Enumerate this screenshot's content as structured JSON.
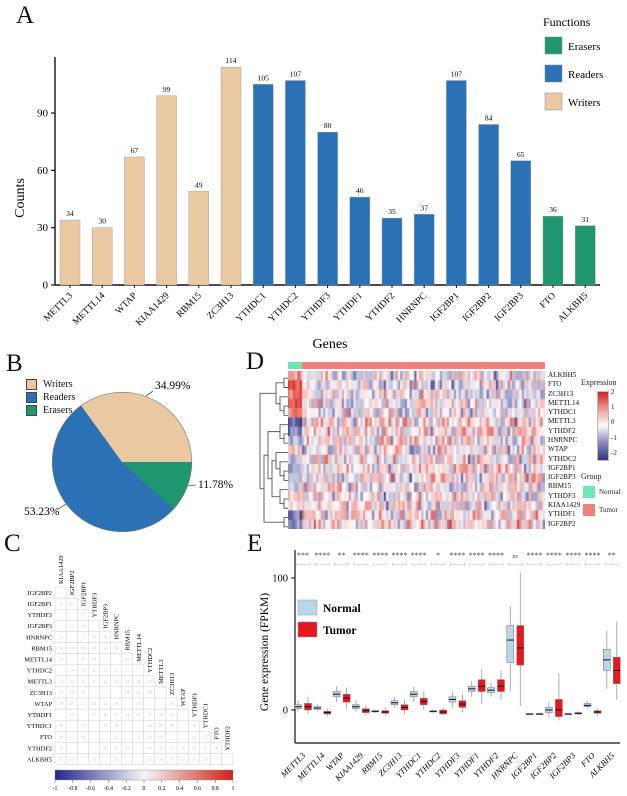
{
  "panel_letters": {
    "a": "A",
    "b": "B",
    "c": "C",
    "d": "D",
    "e": "E"
  },
  "colors": {
    "writers": "#EAC8A2",
    "readers": "#2A72B5",
    "erasers": "#1E9771",
    "normal_box": "#B8D6E6",
    "tumor_box": "#E8161D",
    "group_normal": "#70E6B4",
    "group_tumor": "#F0827B",
    "heat_pos": "#DE3228",
    "heat_neg": "#39398C",
    "corr_neg": "#24248C",
    "corr_pos": "#CC2418"
  },
  "chart_data": [
    {
      "id": "A",
      "type": "bar",
      "xlabel": "Genes",
      "ylabel": "Counts",
      "yticks": [
        0,
        30,
        60,
        90
      ],
      "categories": [
        "METTL3",
        "METTL14",
        "WTAP",
        "KIAA1429",
        "RBM15",
        "ZC3H13",
        "YTHDC1",
        "YTHDC2",
        "YTHDF3",
        "YTHDF1",
        "YTHDF2",
        "HNRNPC",
        "IGF2BP1",
        "IGF2BP2",
        "IGF2BP3",
        "FTO",
        "ALKBH5"
      ],
      "values": [
        34,
        30,
        67,
        99,
        49,
        114,
        105,
        107,
        80,
        46,
        35,
        37,
        107,
        84,
        65,
        36,
        31
      ],
      "groups": [
        "Writers",
        "Writers",
        "Writers",
        "Writers",
        "Writers",
        "Writers",
        "Readers",
        "Readers",
        "Readers",
        "Readers",
        "Readers",
        "Readers",
        "Readers",
        "Readers",
        "Readers",
        "Erasers",
        "Erasers"
      ],
      "legend": {
        "title": "Functions",
        "items": [
          {
            "label": "Erasers",
            "color": "#1E9771"
          },
          {
            "label": "Readers",
            "color": "#2A72B5"
          },
          {
            "label": "Writers",
            "color": "#EAC8A2"
          }
        ]
      }
    },
    {
      "id": "B",
      "type": "pie",
      "slices": [
        {
          "label": "Writers",
          "pct": 34.99,
          "text": "34.99%",
          "color": "#EAC8A2"
        },
        {
          "label": "Readers",
          "pct": 53.23,
          "text": "53.23%",
          "color": "#2A72B5"
        },
        {
          "label": "Erasers",
          "pct": 11.78,
          "text": "11.78%",
          "color": "#1E9771"
        }
      ],
      "legend": [
        {
          "label": "Writers",
          "color": "#EAC8A2"
        },
        {
          "label": "Readers",
          "color": "#2A72B5"
        },
        {
          "label": "Erasers",
          "color": "#1E9771"
        }
      ]
    },
    {
      "id": "C",
      "type": "heatmap",
      "subtype": "correlation_lower_triangle",
      "row_labels": [
        "IGF2BP2",
        "IGF2BP1",
        "YTHDF3",
        "IGF2BP3",
        "HNRNPC",
        "RBM15",
        "METTL14",
        "YTHDC2",
        "METTL3",
        "ZC3H13",
        "WTAP",
        "YTHDF1",
        "YTHDC1",
        "FTO",
        "YTHDF2",
        "ALKBH5"
      ],
      "col_labels": [
        "KIAA1429",
        "IGF2BP2",
        "IGF2BP1",
        "YTHDF3",
        "IGF2BP3",
        "HNRNPC",
        "RBM15",
        "METTL14",
        "YTHDC2",
        "METTL3",
        "ZC3H13",
        "WTAP",
        "YTHDF1",
        "YTHDC1",
        "FTO",
        "YTHDF2"
      ],
      "colorbar_ticks": [
        -1,
        -0.8,
        -0.6,
        -0.4,
        -0.2,
        0,
        0.2,
        0.4,
        0.6,
        0.8,
        1
      ]
    },
    {
      "id": "D",
      "type": "heatmap",
      "subtype": "expression",
      "rows": [
        "ALKBH5",
        "FTO",
        "ZC3H13",
        "METTL14",
        "YTHDC1",
        "METTL3",
        "YTHDF2",
        "HNRNPC",
        "WTAP",
        "YTHDC2",
        "IGF2BP1",
        "IGF2BP3",
        "RBM15",
        "YTHDF3",
        "KIAA1429",
        "YTHDF1",
        "IGF2BP2"
      ],
      "row_normal_bias": [
        1.2,
        1.8,
        1.5,
        2.0,
        1.3,
        -1.8,
        -1.2,
        -0.8,
        0.8,
        -0.6,
        -0.9,
        -0.7,
        -0.5,
        0.7,
        0.2,
        -1.6,
        -1.4
      ],
      "n_columns": 110,
      "normal_fraction": 0.055,
      "expression_legend": {
        "title": "Expression",
        "ticks": [
          2,
          1,
          0,
          -1,
          -2
        ]
      },
      "group_legend": {
        "title": "Group",
        "items": [
          {
            "label": "Normal",
            "color": "#70E6B4"
          },
          {
            "label": "Tumor",
            "color": "#F0827B"
          }
        ]
      }
    },
    {
      "id": "E",
      "type": "box",
      "ylabel": "Gene expression (FPKM)",
      "yticks": [
        0,
        100
      ],
      "genes": [
        "METTL3",
        "METTL14",
        "WTAP",
        "KIAA1429",
        "RBM15",
        "ZC3H13",
        "YTHDC1",
        "YTHDC2",
        "YTHDF3",
        "YTHDF1",
        "YTHDF2",
        "HNRNPC",
        "IGF2BP1",
        "IGF2BP2",
        "IGF2BP3",
        "FTO",
        "ALKBH5"
      ],
      "significance": [
        "***",
        "****",
        "**",
        "****",
        "****",
        "****",
        "****",
        "*",
        "****",
        "****",
        "****",
        "ns",
        "****",
        "****",
        "****",
        "****",
        "**"
      ],
      "legend": [
        {
          "label": "Normal",
          "color": "#B8D6E6"
        },
        {
          "label": "Tumor",
          "color": "#E8161D"
        }
      ],
      "series": [
        {
          "name": "Normal",
          "stats": [
            [
              -1,
              1,
              2.5,
              4,
              7
            ],
            [
              -1,
              0.5,
              1.5,
              2.5,
              4
            ],
            [
              6,
              10,
              12,
              14,
              18
            ],
            [
              -1,
              1,
              2.5,
              4,
              7
            ],
            [
              -2,
              -1.5,
              -1,
              -0.5,
              0.5
            ],
            [
              2,
              4,
              5.5,
              7,
              10
            ],
            [
              6,
              10,
              12,
              14,
              18
            ],
            [
              -2,
              -1.5,
              -1,
              -0.5,
              0.5
            ],
            [
              2,
              6,
              8,
              10,
              14
            ],
            [
              10,
              14,
              16,
              18,
              22
            ],
            [
              10,
              13,
              15,
              17,
              21
            ],
            [
              14,
              36,
              53,
              64,
              79
            ],
            [
              -3,
              -3.2,
              -3,
              -2.8,
              -3
            ],
            [
              -6,
              -2,
              0,
              2,
              6
            ],
            [
              -3,
              -3.2,
              -3,
              -2.8,
              -2.5
            ],
            [
              1,
              2.5,
              3.5,
              5,
              7
            ],
            [
              16,
              30,
              38,
              46,
              60
            ]
          ]
        },
        {
          "name": "Tumor",
          "stats": [
            [
              -3,
              0,
              2.5,
              5,
              10
            ],
            [
              -5,
              -3,
              -2,
              -1,
              1
            ],
            [
              1,
              6,
              9,
              12,
              17
            ],
            [
              -4,
              -2,
              -0.5,
              1,
              4
            ],
            [
              -4,
              -2.5,
              -1.5,
              -0.5,
              2
            ],
            [
              -3,
              0,
              2,
              4,
              8
            ],
            [
              0,
              4,
              6.5,
              9,
              14
            ],
            [
              -4,
              -3,
              -1.5,
              0,
              2
            ],
            [
              -2,
              2,
              4.5,
              7,
              12
            ],
            [
              5,
              14,
              18,
              23,
              31
            ],
            [
              8,
              14,
              18,
              23,
              30
            ],
            [
              3,
              34,
              47,
              64,
              104
            ],
            [
              -3,
              -3.2,
              -3,
              -2.8,
              -2
            ],
            [
              -8,
              -5,
              0,
              8,
              28
            ],
            [
              -4,
              -3,
              -2.5,
              -2,
              -1
            ],
            [
              -4,
              -2.5,
              -1.5,
              -0.5,
              1
            ],
            [
              8,
              20,
              30,
              40,
              67
            ]
          ]
        }
      ]
    }
  ]
}
